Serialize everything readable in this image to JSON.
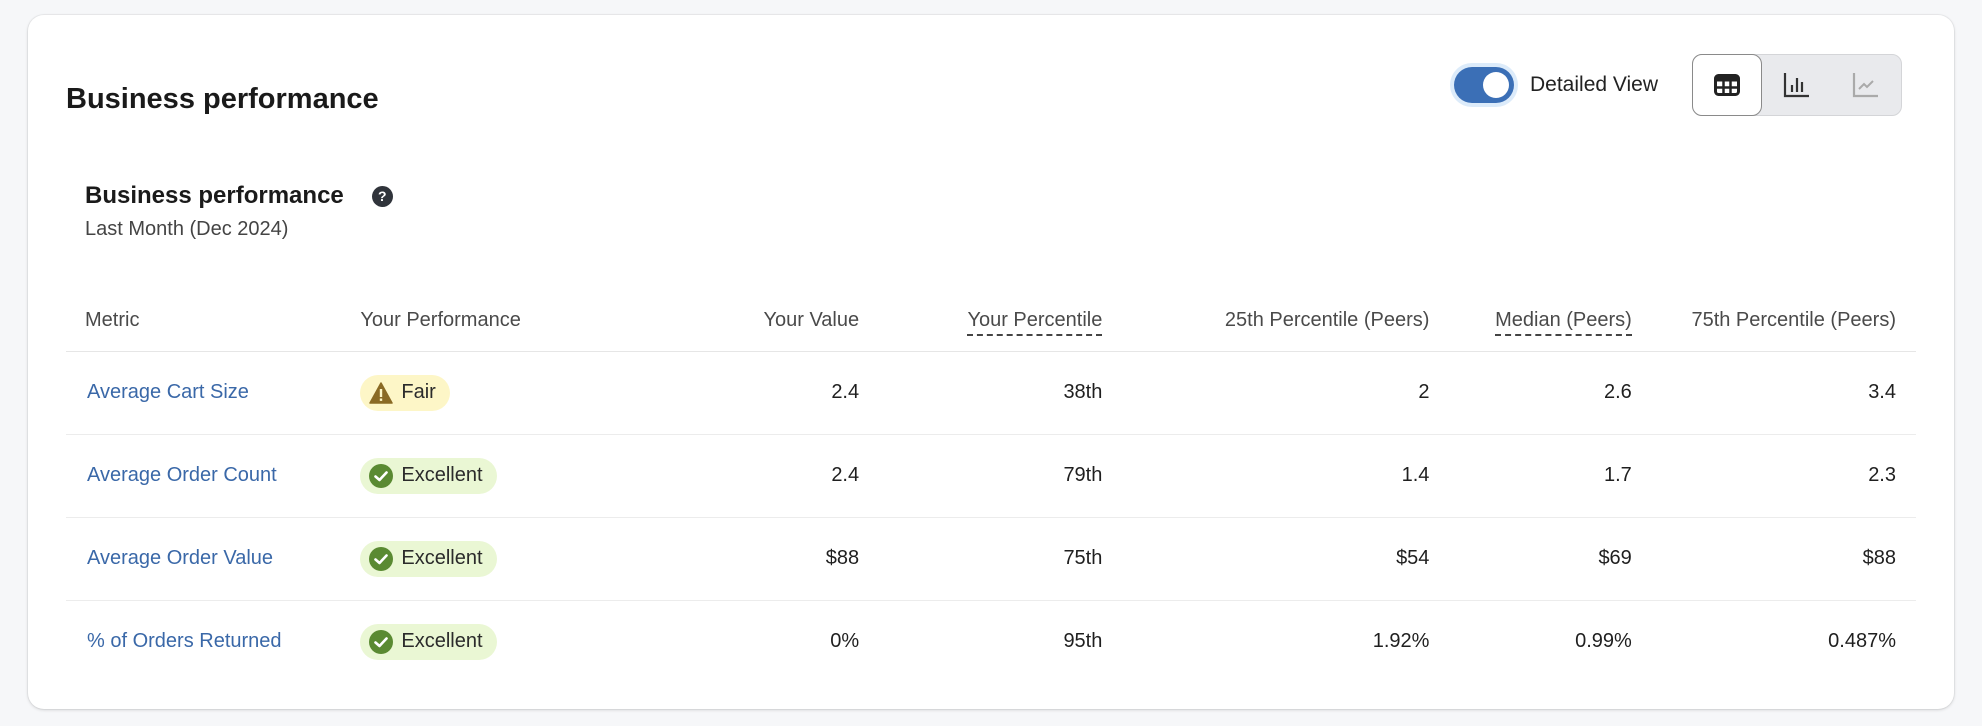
{
  "header": {
    "title": "Business performance",
    "toggle": {
      "label": "Detailed View",
      "on": true
    },
    "view_buttons": [
      {
        "icon": "table-icon",
        "active": true
      },
      {
        "icon": "bar-chart-icon",
        "active": false
      },
      {
        "icon": "line-chart-icon",
        "active": false
      }
    ]
  },
  "section": {
    "title": "Business performance",
    "help_icon": "question-circle-icon",
    "subtitle": "Last Month (Dec 2024)"
  },
  "table": {
    "columns": [
      "Metric",
      "Your Performance",
      "Your Value",
      "Your Percentile",
      "25th Percentile (Peers)",
      "Median (Peers)",
      "75th Percentile (Peers)"
    ],
    "rows": [
      {
        "metric": "Average Cart Size",
        "performance": "Fair",
        "status": "fair",
        "value": "2.4",
        "percentile": "38th",
        "p25": "2",
        "median": "2.6",
        "p75": "3.4"
      },
      {
        "metric": "Average Order Count",
        "performance": "Excellent",
        "status": "excellent",
        "value": "2.4",
        "percentile": "79th",
        "p25": "1.4",
        "median": "1.7",
        "p75": "2.3"
      },
      {
        "metric": "Average Order Value",
        "performance": "Excellent",
        "status": "excellent",
        "value": "$88",
        "percentile": "75th",
        "p25": "$54",
        "median": "$69",
        "p75": "$88"
      },
      {
        "metric": "% of Orders Returned",
        "performance": "Excellent",
        "status": "excellent",
        "value": "0%",
        "percentile": "95th",
        "p25": "1.92%",
        "median": "0.99%",
        "p75": "0.487%"
      }
    ]
  },
  "colors": {
    "accent": "#3b6fb6",
    "link": "#3a68a8",
    "fair_bg": "#fdf6c7",
    "fair_icon": "#8a6a24",
    "excellent_bg": "#eaf7d4",
    "excellent_icon": "#5a8a32"
  }
}
